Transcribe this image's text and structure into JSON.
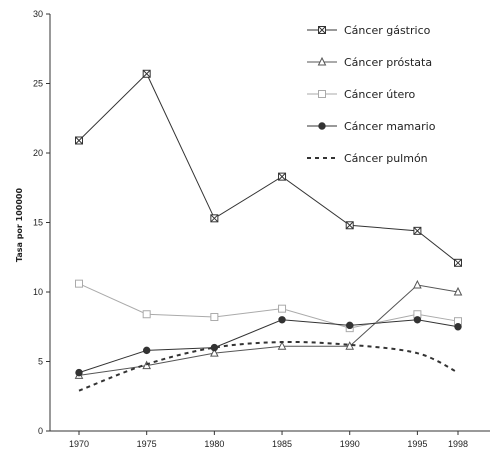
{
  "chart_data": {
    "type": "line",
    "ylabel": "Tasa por 100000",
    "xlabel": "",
    "ylim": [
      0,
      30
    ],
    "yticks": [
      0,
      5,
      10,
      15,
      20,
      25,
      30
    ],
    "x": [
      1970,
      1975,
      1980,
      1985,
      1990,
      1995,
      1998
    ],
    "legend_position": "top-right",
    "grid": false,
    "series": [
      {
        "name": "Cáncer gástrico",
        "marker": "x-square",
        "color": "#333333",
        "values": [
          20.9,
          25.7,
          15.3,
          18.3,
          14.8,
          14.4,
          12.1
        ]
      },
      {
        "name": "Cáncer próstata",
        "marker": "triangle-open",
        "color": "#555555",
        "values": [
          4.0,
          4.7,
          5.6,
          6.1,
          6.1,
          10.5,
          10.0
        ]
      },
      {
        "name": "Cáncer útero",
        "marker": "square-open",
        "color": "#aaaaaa",
        "values": [
          10.6,
          8.4,
          8.2,
          8.8,
          7.4,
          8.4,
          7.9
        ]
      },
      {
        "name": "Cáncer mamario",
        "marker": "circle-filled",
        "color": "#333333",
        "values": [
          4.2,
          5.8,
          6.0,
          8.0,
          7.6,
          8.0,
          7.5
        ]
      },
      {
        "name": "Cáncer pulmón",
        "marker": "none",
        "dashed": true,
        "color": "#333333",
        "values": [
          2.9,
          4.8,
          6.0,
          6.4,
          6.2,
          5.6,
          4.2
        ]
      }
    ]
  }
}
